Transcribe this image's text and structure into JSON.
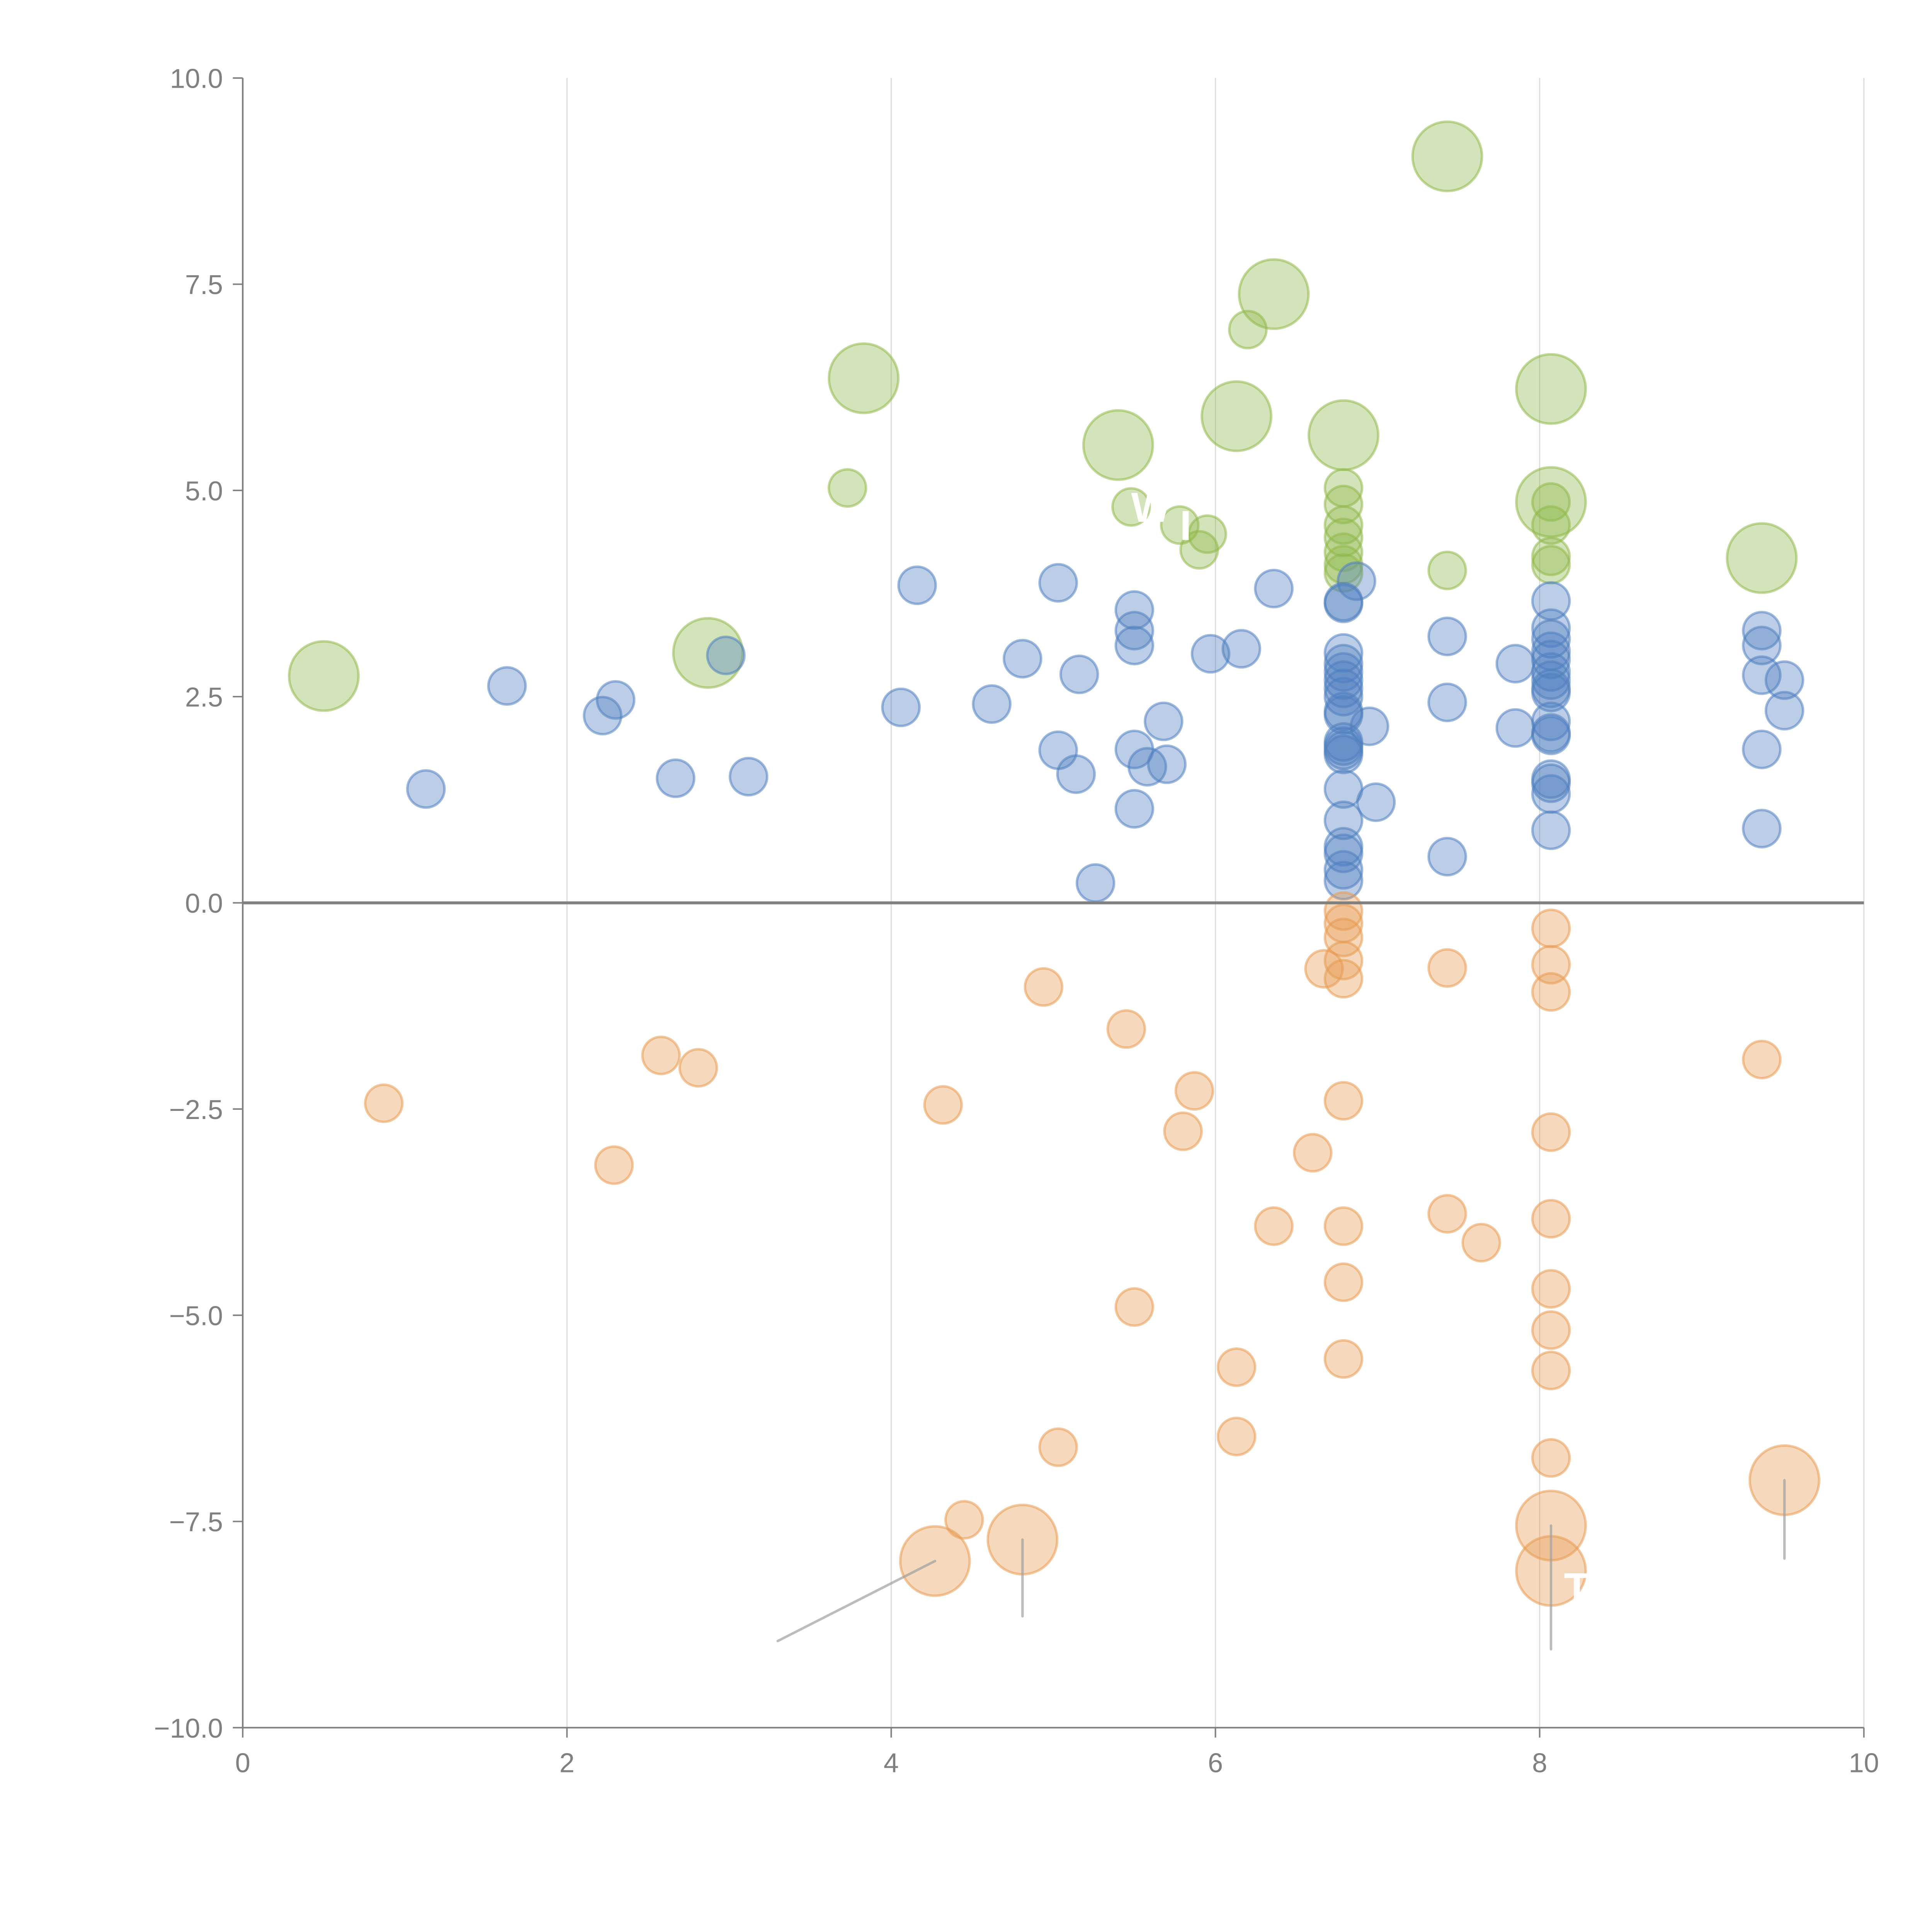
{
  "chart_data": {
    "type": "scatter",
    "subtype": "bubble",
    "title": "",
    "xlabel": "",
    "ylabel": "",
    "xlim": [
      0,
      10
    ],
    "ylim": [
      -10,
      10
    ],
    "x_ticks": [
      "0",
      "2",
      "4",
      "6",
      "8",
      "10"
    ],
    "x_tick_values": [
      0,
      2,
      4,
      6,
      8,
      10
    ],
    "y_ticks": [
      "10.0",
      "7.5",
      "5.0",
      "2.5",
      "0.0",
      "−2.5",
      "−5.0",
      "−7.5",
      "−10.0"
    ],
    "y_tick_values": [
      10,
      7.5,
      5,
      2.5,
      0,
      -2.5,
      -5,
      -7.5,
      -10
    ],
    "grid": "vertical only (x)",
    "zero_line": true,
    "legend": "none",
    "series": [
      {
        "name": "green",
        "color": "#8fb84a",
        "points": [
          {
            "x": 0.5,
            "y": 2.75,
            "size": "large"
          },
          {
            "x": 2.87,
            "y": 3.03,
            "size": "large"
          },
          {
            "x": 3.83,
            "y": 6.36,
            "size": "large"
          },
          {
            "x": 3.73,
            "y": 5.03,
            "size": "small"
          },
          {
            "x": 5.4,
            "y": 5.55,
            "size": "large"
          },
          {
            "x": 5.48,
            "y": 4.8,
            "size": "small"
          },
          {
            "x": 5.78,
            "y": 4.58,
            "size": "small"
          },
          {
            "x": 5.9,
            "y": 4.28,
            "size": "small"
          },
          {
            "x": 5.95,
            "y": 4.47,
            "size": "small"
          },
          {
            "x": 6.13,
            "y": 5.9,
            "size": "large"
          },
          {
            "x": 6.2,
            "y": 6.95,
            "size": "small"
          },
          {
            "x": 6.36,
            "y": 7.38,
            "size": "large"
          },
          {
            "x": 6.79,
            "y": 5.67,
            "size": "large"
          },
          {
            "x": 6.79,
            "y": 5.03,
            "size": "small"
          },
          {
            "x": 6.79,
            "y": 4.83,
            "size": "small"
          },
          {
            "x": 6.79,
            "y": 4.58,
            "size": "small"
          },
          {
            "x": 6.79,
            "y": 4.43,
            "size": "small"
          },
          {
            "x": 6.79,
            "y": 4.25,
            "size": "small"
          },
          {
            "x": 6.79,
            "y": 4.1,
            "size": "small"
          },
          {
            "x": 6.79,
            "y": 4.0,
            "size": "small"
          },
          {
            "x": 7.43,
            "y": 9.05,
            "size": "large"
          },
          {
            "x": 7.43,
            "y": 4.03,
            "size": "small"
          },
          {
            "x": 8.07,
            "y": 6.23,
            "size": "large"
          },
          {
            "x": 8.07,
            "y": 4.86,
            "size": "large"
          },
          {
            "x": 8.07,
            "y": 4.86,
            "size": "small"
          },
          {
            "x": 8.07,
            "y": 4.58,
            "size": "small"
          },
          {
            "x": 8.07,
            "y": 4.2,
            "size": "small"
          },
          {
            "x": 8.07,
            "y": 4.1,
            "size": "small"
          },
          {
            "x": 9.37,
            "y": 4.18,
            "size": "large"
          }
        ]
      },
      {
        "name": "blue",
        "color": "#4e7fc0",
        "points": [
          {
            "x": 1.13,
            "y": 1.38
          },
          {
            "x": 1.63,
            "y": 2.63
          },
          {
            "x": 2.22,
            "y": 2.27
          },
          {
            "x": 2.3,
            "y": 2.46
          },
          {
            "x": 2.67,
            "y": 1.51
          },
          {
            "x": 2.98,
            "y": 3.0
          },
          {
            "x": 3.12,
            "y": 1.53
          },
          {
            "x": 4.06,
            "y": 2.37
          },
          {
            "x": 4.16,
            "y": 3.85
          },
          {
            "x": 4.62,
            "y": 2.41
          },
          {
            "x": 4.81,
            "y": 2.96
          },
          {
            "x": 5.03,
            "y": 3.88
          },
          {
            "x": 5.03,
            "y": 1.85
          },
          {
            "x": 5.14,
            "y": 1.56
          },
          {
            "x": 5.16,
            "y": 2.77
          },
          {
            "x": 5.26,
            "y": 0.24
          },
          {
            "x": 5.5,
            "y": 3.55
          },
          {
            "x": 5.5,
            "y": 3.3
          },
          {
            "x": 5.5,
            "y": 3.12
          },
          {
            "x": 5.5,
            "y": 1.86
          },
          {
            "x": 5.5,
            "y": 1.14
          },
          {
            "x": 5.58,
            "y": 1.65
          },
          {
            "x": 5.68,
            "y": 2.2
          },
          {
            "x": 5.7,
            "y": 1.68
          },
          {
            "x": 5.97,
            "y": 3.02
          },
          {
            "x": 6.16,
            "y": 3.08
          },
          {
            "x": 6.36,
            "y": 3.81
          },
          {
            "x": 6.79,
            "y": 3.65
          },
          {
            "x": 6.79,
            "y": 3.63
          },
          {
            "x": 6.87,
            "y": 3.9
          },
          {
            "x": 6.79,
            "y": 3.03
          },
          {
            "x": 6.79,
            "y": 2.9
          },
          {
            "x": 6.79,
            "y": 2.8
          },
          {
            "x": 6.79,
            "y": 2.7
          },
          {
            "x": 6.79,
            "y": 2.6
          },
          {
            "x": 6.79,
            "y": 2.5
          },
          {
            "x": 6.79,
            "y": 2.32
          },
          {
            "x": 6.79,
            "y": 2.28
          },
          {
            "x": 6.79,
            "y": 1.95
          },
          {
            "x": 6.79,
            "y": 1.9
          },
          {
            "x": 6.79,
            "y": 1.85
          },
          {
            "x": 6.79,
            "y": 1.8
          },
          {
            "x": 6.95,
            "y": 2.14
          },
          {
            "x": 6.79,
            "y": 1.38
          },
          {
            "x": 6.99,
            "y": 1.22
          },
          {
            "x": 6.79,
            "y": 1.0
          },
          {
            "x": 6.79,
            "y": 0.68
          },
          {
            "x": 6.79,
            "y": 0.6
          },
          {
            "x": 6.79,
            "y": 0.4
          },
          {
            "x": 6.79,
            "y": 0.27
          },
          {
            "x": 7.43,
            "y": 3.23
          },
          {
            "x": 7.43,
            "y": 2.43
          },
          {
            "x": 7.43,
            "y": 0.56
          },
          {
            "x": 7.85,
            "y": 2.9
          },
          {
            "x": 7.85,
            "y": 2.12
          },
          {
            "x": 8.07,
            "y": 3.66
          },
          {
            "x": 8.07,
            "y": 3.33
          },
          {
            "x": 8.07,
            "y": 3.2
          },
          {
            "x": 8.07,
            "y": 3.05
          },
          {
            "x": 8.07,
            "y": 2.95
          },
          {
            "x": 8.07,
            "y": 2.8
          },
          {
            "x": 8.07,
            "y": 2.7
          },
          {
            "x": 8.07,
            "y": 2.6
          },
          {
            "x": 8.07,
            "y": 2.55
          },
          {
            "x": 8.07,
            "y": 2.2
          },
          {
            "x": 8.07,
            "y": 2.06
          },
          {
            "x": 8.07,
            "y": 2.03
          },
          {
            "x": 8.07,
            "y": 1.5
          },
          {
            "x": 8.07,
            "y": 1.45
          },
          {
            "x": 8.07,
            "y": 1.32
          },
          {
            "x": 8.07,
            "y": 0.88
          },
          {
            "x": 9.37,
            "y": 3.3
          },
          {
            "x": 9.37,
            "y": 3.12
          },
          {
            "x": 9.37,
            "y": 2.76
          },
          {
            "x": 9.51,
            "y": 2.7
          },
          {
            "x": 9.51,
            "y": 2.33
          },
          {
            "x": 9.37,
            "y": 1.86
          },
          {
            "x": 9.37,
            "y": 0.9
          }
        ]
      },
      {
        "name": "orange",
        "color": "#e89a52",
        "points": [
          {
            "x": 0.87,
            "y": -2.43,
            "size": "small"
          },
          {
            "x": 2.29,
            "y": -3.18,
            "size": "small"
          },
          {
            "x": 2.58,
            "y": -1.85,
            "size": "small"
          },
          {
            "x": 2.81,
            "y": -2.0,
            "size": "small"
          },
          {
            "x": 4.32,
            "y": -2.45,
            "size": "small"
          },
          {
            "x": 4.27,
            "y": -7.98,
            "size": "large"
          },
          {
            "x": 4.45,
            "y": -7.48,
            "size": "small"
          },
          {
            "x": 4.81,
            "y": -7.72,
            "size": "large"
          },
          {
            "x": 4.94,
            "y": -1.02,
            "size": "small"
          },
          {
            "x": 5.03,
            "y": -6.6,
            "size": "small"
          },
          {
            "x": 5.45,
            "y": -1.53,
            "size": "small"
          },
          {
            "x": 5.5,
            "y": -4.9,
            "size": "small"
          },
          {
            "x": 5.8,
            "y": -2.77,
            "size": "small"
          },
          {
            "x": 5.87,
            "y": -2.28,
            "size": "small"
          },
          {
            "x": 6.13,
            "y": -5.63,
            "size": "small"
          },
          {
            "x": 6.13,
            "y": -6.47,
            "size": "small"
          },
          {
            "x": 6.36,
            "y": -3.92,
            "size": "small"
          },
          {
            "x": 6.6,
            "y": -3.03,
            "size": "small"
          },
          {
            "x": 6.67,
            "y": -0.8,
            "size": "small"
          },
          {
            "x": 6.79,
            "y": -0.1,
            "size": "small"
          },
          {
            "x": 6.79,
            "y": -0.25,
            "size": "small"
          },
          {
            "x": 6.79,
            "y": -0.42,
            "size": "small"
          },
          {
            "x": 6.79,
            "y": -0.7,
            "size": "small"
          },
          {
            "x": 6.79,
            "y": -0.92,
            "size": "small"
          },
          {
            "x": 6.79,
            "y": -2.4,
            "size": "small"
          },
          {
            "x": 6.79,
            "y": -3.92,
            "size": "small"
          },
          {
            "x": 6.79,
            "y": -4.6,
            "size": "small"
          },
          {
            "x": 6.79,
            "y": -5.53,
            "size": "small"
          },
          {
            "x": 7.43,
            "y": -0.79,
            "size": "small"
          },
          {
            "x": 7.43,
            "y": -3.77,
            "size": "small"
          },
          {
            "x": 7.64,
            "y": -4.12,
            "size": "small"
          },
          {
            "x": 8.07,
            "y": -0.31,
            "size": "small"
          },
          {
            "x": 8.07,
            "y": -0.75,
            "size": "small"
          },
          {
            "x": 8.07,
            "y": -1.08,
            "size": "small"
          },
          {
            "x": 8.07,
            "y": -2.78,
            "size": "small"
          },
          {
            "x": 8.07,
            "y": -3.83,
            "size": "small"
          },
          {
            "x": 8.07,
            "y": -4.68,
            "size": "small"
          },
          {
            "x": 8.07,
            "y": -5.18,
            "size": "small"
          },
          {
            "x": 8.07,
            "y": -5.67,
            "size": "small"
          },
          {
            "x": 8.07,
            "y": -6.73,
            "size": "small"
          },
          {
            "x": 8.07,
            "y": -7.55,
            "size": "large"
          },
          {
            "x": 8.07,
            "y": -8.1,
            "size": "large"
          },
          {
            "x": 9.37,
            "y": -1.9,
            "size": "small"
          },
          {
            "x": 9.51,
            "y": -7.0,
            "size": "large"
          }
        ]
      }
    ],
    "annotations": [
      {
        "text": "W",
        "x": 5.48,
        "y": 4.8,
        "color": "#ffffff"
      },
      {
        "text": "I",
        "x": 5.78,
        "y": 4.58,
        "color": "#ffffff"
      },
      {
        "text": "T",
        "x": 8.15,
        "y": -8.3,
        "color": "#ffffff"
      }
    ],
    "leader_lines": [
      {
        "from": [
          4.27,
          -7.98
        ],
        "to": [
          3.3,
          -8.95
        ]
      },
      {
        "from": [
          4.81,
          -7.72
        ],
        "to": [
          4.81,
          -8.65
        ]
      },
      {
        "from": [
          8.07,
          -7.55
        ],
        "to": [
          8.07,
          -9.05
        ]
      },
      {
        "from": [
          9.51,
          -7.0
        ],
        "to": [
          9.51,
          -7.95
        ]
      }
    ]
  }
}
